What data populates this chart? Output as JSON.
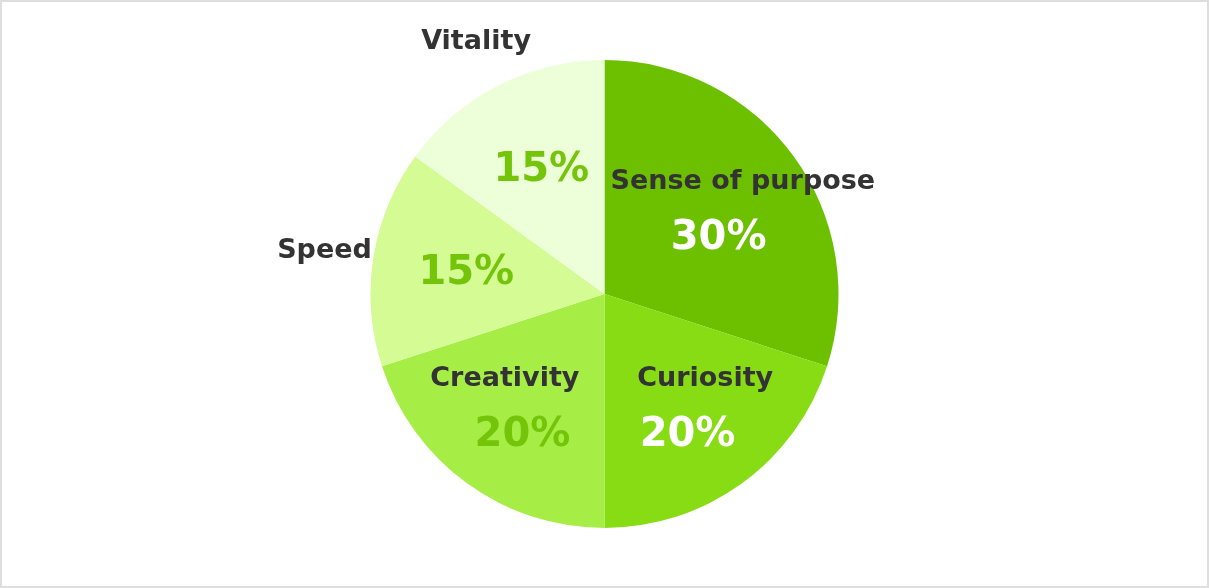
{
  "chart_data": {
    "type": "pie",
    "categories": [
      "Sense of purpose",
      "Curiosity",
      "Creativity",
      "Speed",
      "Vitality"
    ],
    "values": [
      30,
      20,
      20,
      15,
      15
    ],
    "colors": [
      "#6cc000",
      "#88dc14",
      "#a6ee46",
      "#d4fb94",
      "#edffd8"
    ],
    "value_labels": [
      "30%",
      "20%",
      "20%",
      "15%",
      "15%"
    ]
  }
}
